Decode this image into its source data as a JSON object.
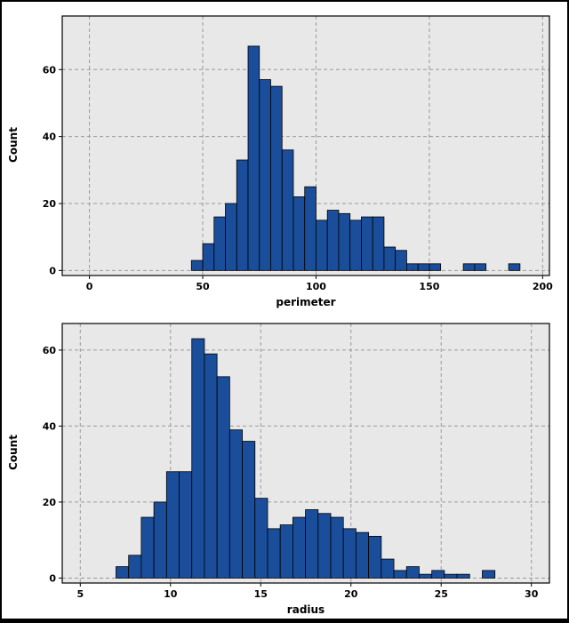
{
  "figure": {
    "style": {
      "page_bg": "#ffffff",
      "plot_bg": "#e8e8e8",
      "bar_fill": "#1a4e9b",
      "bar_stroke": "#000000",
      "grid_color": "#9a9a9a",
      "axis_color": "#000000"
    }
  },
  "chart_data": [
    {
      "type": "bar",
      "subtype": "histogram",
      "title": "",
      "xlabel": "perimeter",
      "ylabel": "Count",
      "bin_start": 45,
      "bin_width": 5,
      "counts": [
        3,
        8,
        16,
        20,
        33,
        67,
        57,
        55,
        36,
        22,
        25,
        15,
        18,
        17,
        15,
        16,
        16,
        7,
        6,
        2,
        2,
        2,
        0,
        0,
        2,
        2,
        0,
        0,
        2
      ],
      "x_ticks": [
        0,
        50,
        100,
        150,
        200
      ],
      "y_ticks": [
        0,
        20,
        40,
        60
      ],
      "xlim": [
        -12,
        203
      ],
      "ylim": [
        -1.5,
        76
      ],
      "grid": "dashed",
      "legend": "none"
    },
    {
      "type": "bar",
      "subtype": "histogram",
      "title": "",
      "xlabel": "radius",
      "ylabel": "Count",
      "bin_start": 6.98,
      "bin_width": 0.7,
      "counts": [
        3,
        6,
        16,
        20,
        28,
        28,
        63,
        59,
        53,
        39,
        36,
        21,
        13,
        14,
        16,
        18,
        17,
        16,
        13,
        12,
        11,
        5,
        2,
        3,
        1,
        2,
        1,
        1,
        0,
        2
      ],
      "x_ticks": [
        5,
        10,
        15,
        20,
        25,
        30
      ],
      "y_ticks": [
        0,
        20,
        40,
        60
      ],
      "xlim": [
        4,
        31
      ],
      "ylim": [
        -1.3,
        67
      ],
      "grid": "dashed",
      "legend": "none"
    }
  ]
}
